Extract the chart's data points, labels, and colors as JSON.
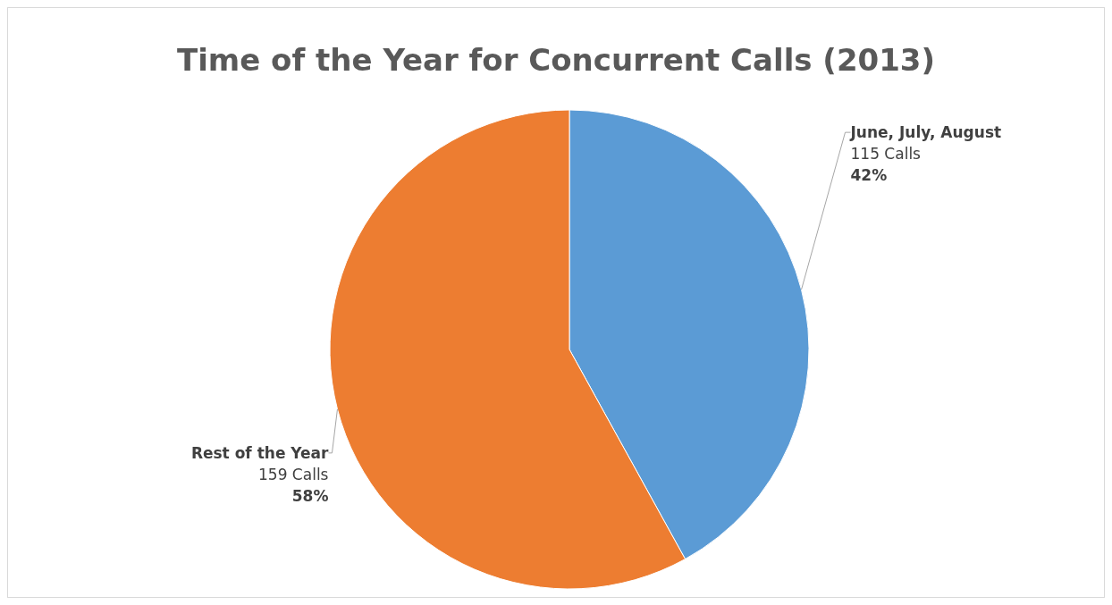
{
  "chart_data": {
    "type": "pie",
    "title": "Time of the Year for Concurrent Calls (2013)",
    "categories": [
      "June, July, August",
      "Rest of the Year"
    ],
    "values": [
      115,
      159
    ],
    "colors": [
      "#5b9bd5",
      "#ed7d31"
    ],
    "value_labels": [
      "115 Calls\n42%",
      "159 Calls\n58%"
    ]
  }
}
